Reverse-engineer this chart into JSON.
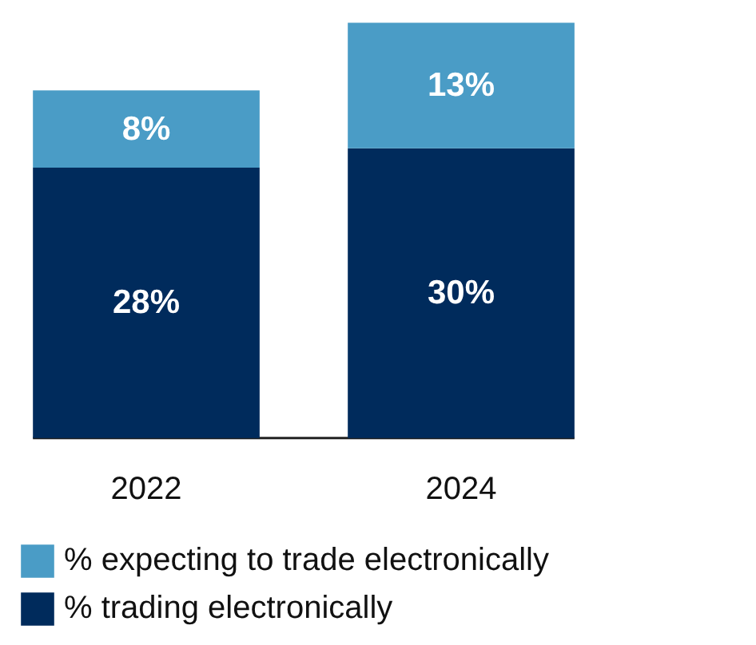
{
  "chart_data": {
    "type": "bar",
    "stacked": true,
    "categories": [
      "2022",
      "2024"
    ],
    "series": [
      {
        "name": "% trading electronically",
        "color": "#002b5c",
        "values": [
          28,
          30
        ],
        "value_labels": [
          "28%",
          "30%"
        ]
      },
      {
        "name": "% expecting to trade electronically",
        "color": "#4a9cc6",
        "values": [
          8,
          13
        ],
        "value_labels": [
          "8%",
          "13%"
        ]
      }
    ],
    "legend": "bottom"
  }
}
